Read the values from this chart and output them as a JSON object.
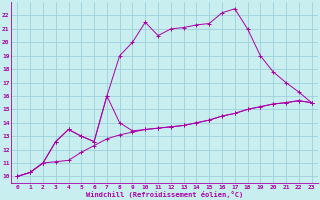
{
  "xlabel": "Windchill (Refroidissement éolien,°C)",
  "bg_color": "#c8eef0",
  "grid_color": "#9ecfda",
  "line_color": "#aa00aa",
  "xlim": [
    -0.5,
    23.5
  ],
  "ylim": [
    9.5,
    23.0
  ],
  "xticks": [
    0,
    1,
    2,
    3,
    4,
    5,
    6,
    7,
    8,
    9,
    10,
    11,
    12,
    13,
    14,
    15,
    16,
    17,
    18,
    19,
    20,
    21,
    22,
    23
  ],
  "yticks": [
    10,
    11,
    12,
    13,
    14,
    15,
    16,
    17,
    18,
    19,
    20,
    21,
    22
  ],
  "line1_x": [
    0,
    1,
    2,
    3,
    4,
    5,
    6,
    7,
    8,
    9,
    10,
    11,
    12,
    13,
    14,
    15,
    16,
    17,
    18,
    19,
    20,
    21,
    22,
    23
  ],
  "line1_y": [
    10.0,
    10.3,
    11.0,
    11.1,
    11.2,
    11.8,
    12.3,
    12.8,
    13.1,
    13.3,
    13.5,
    13.6,
    13.7,
    13.8,
    14.0,
    14.2,
    14.5,
    14.7,
    15.0,
    15.2,
    15.4,
    15.5,
    15.65,
    15.5
  ],
  "line2_x": [
    0,
    1,
    2,
    3,
    4,
    5,
    6,
    7,
    8,
    9,
    10,
    11,
    12,
    13,
    14,
    15,
    16,
    17,
    18,
    19,
    20,
    21,
    22,
    23
  ],
  "line2_y": [
    10.0,
    10.3,
    11.0,
    12.6,
    13.5,
    13.0,
    12.6,
    16.0,
    19.0,
    20.0,
    21.5,
    20.5,
    21.0,
    21.1,
    21.3,
    21.4,
    22.2,
    22.5,
    21.0,
    19.0,
    17.8,
    17.0,
    16.3,
    15.5
  ],
  "line3_x": [
    0,
    1,
    2,
    3,
    4,
    5,
    6,
    7,
    8,
    9,
    10,
    11,
    12,
    13,
    14,
    15,
    16,
    17,
    18,
    19,
    20,
    21,
    22,
    23
  ],
  "line3_y": [
    10.0,
    10.3,
    11.0,
    12.6,
    13.5,
    13.0,
    12.6,
    16.0,
    14.0,
    13.4,
    13.5,
    13.6,
    13.7,
    13.8,
    14.0,
    14.2,
    14.5,
    14.7,
    15.0,
    15.2,
    15.4,
    15.5,
    15.65,
    15.5
  ]
}
